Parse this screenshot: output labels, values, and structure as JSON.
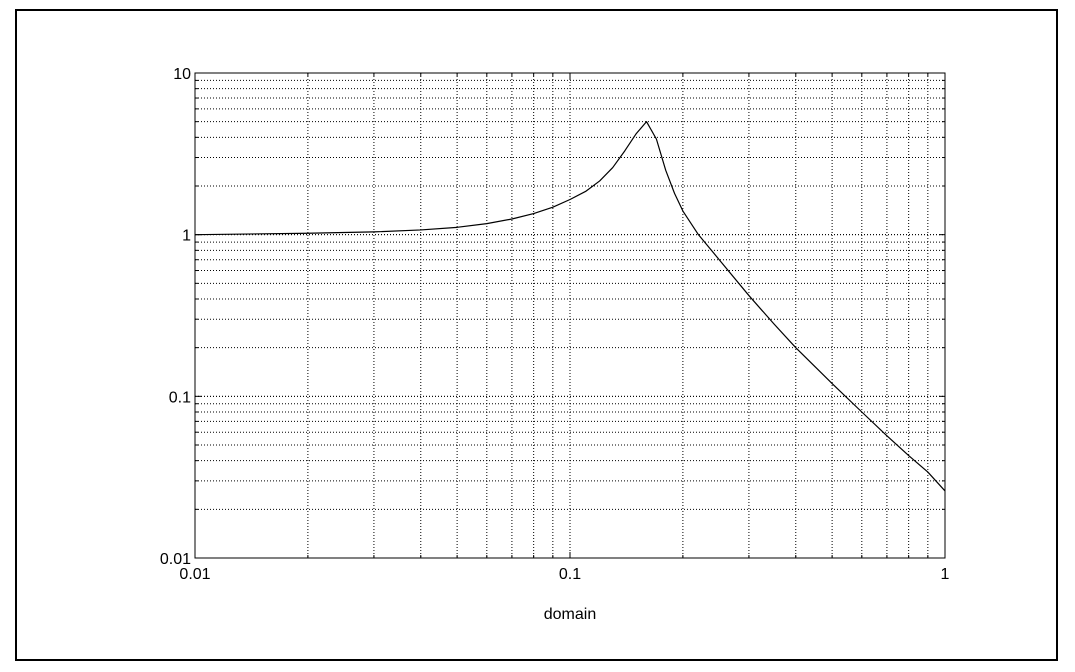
{
  "chart_data": {
    "type": "line",
    "title": "",
    "xlabel": "domain",
    "ylabel": "",
    "x_scale": "log",
    "y_scale": "log",
    "xlim": [
      0.01,
      1
    ],
    "ylim": [
      0.01,
      10
    ],
    "grid": true,
    "grid_style": "dotted",
    "x_ticks": [
      {
        "value": 0.01,
        "label": "0.01"
      },
      {
        "value": 0.1,
        "label": "0.1"
      },
      {
        "value": 1,
        "label": "1"
      }
    ],
    "y_ticks": [
      {
        "value": 0.01,
        "label": "0.01"
      },
      {
        "value": 0.1,
        "label": "0.1"
      },
      {
        "value": 1,
        "label": "1"
      },
      {
        "value": 10,
        "label": "10"
      }
    ],
    "series": [
      {
        "color": "#000000",
        "x": [
          0.01,
          0.02,
          0.03,
          0.04,
          0.05,
          0.06,
          0.07,
          0.08,
          0.09,
          0.1,
          0.11,
          0.12,
          0.13,
          0.14,
          0.15,
          0.16,
          0.17,
          0.18,
          0.19,
          0.2,
          0.22,
          0.25,
          0.3,
          0.35,
          0.4,
          0.5,
          0.6,
          0.7,
          0.8,
          0.9,
          1.0
        ],
        "y": [
          1.0,
          1.02,
          1.04,
          1.07,
          1.11,
          1.17,
          1.25,
          1.35,
          1.48,
          1.65,
          1.85,
          2.15,
          2.6,
          3.3,
          4.2,
          5.0,
          3.9,
          2.5,
          1.8,
          1.4,
          1.0,
          0.7,
          0.42,
          0.28,
          0.2,
          0.12,
          0.08,
          0.057,
          0.043,
          0.034,
          0.026
        ]
      }
    ]
  }
}
